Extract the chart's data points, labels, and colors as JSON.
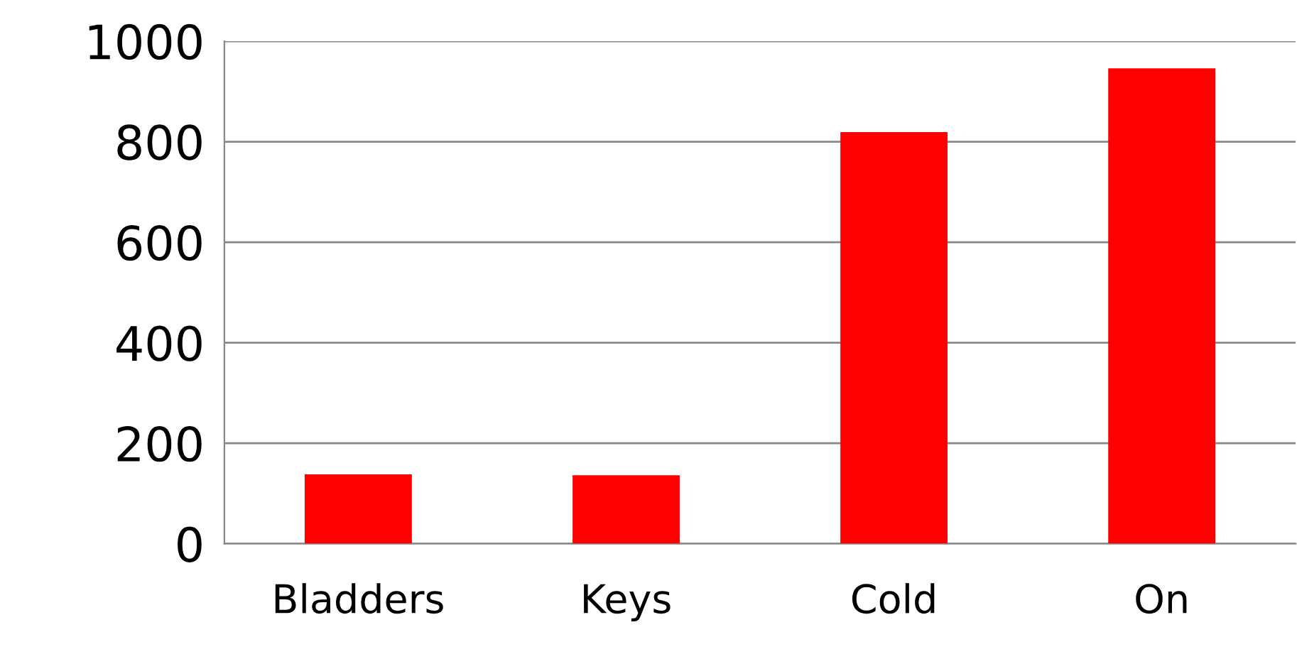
{
  "chart_data": {
    "type": "bar",
    "categories": [
      "Bladders",
      "Keys",
      "Cold",
      "On"
    ],
    "values": [
      138,
      136,
      819,
      946
    ],
    "color": "#ff0000",
    "ylim": [
      0,
      1000
    ],
    "yticks": [
      0,
      200,
      400,
      600,
      800,
      1000
    ],
    "grid": "y"
  }
}
